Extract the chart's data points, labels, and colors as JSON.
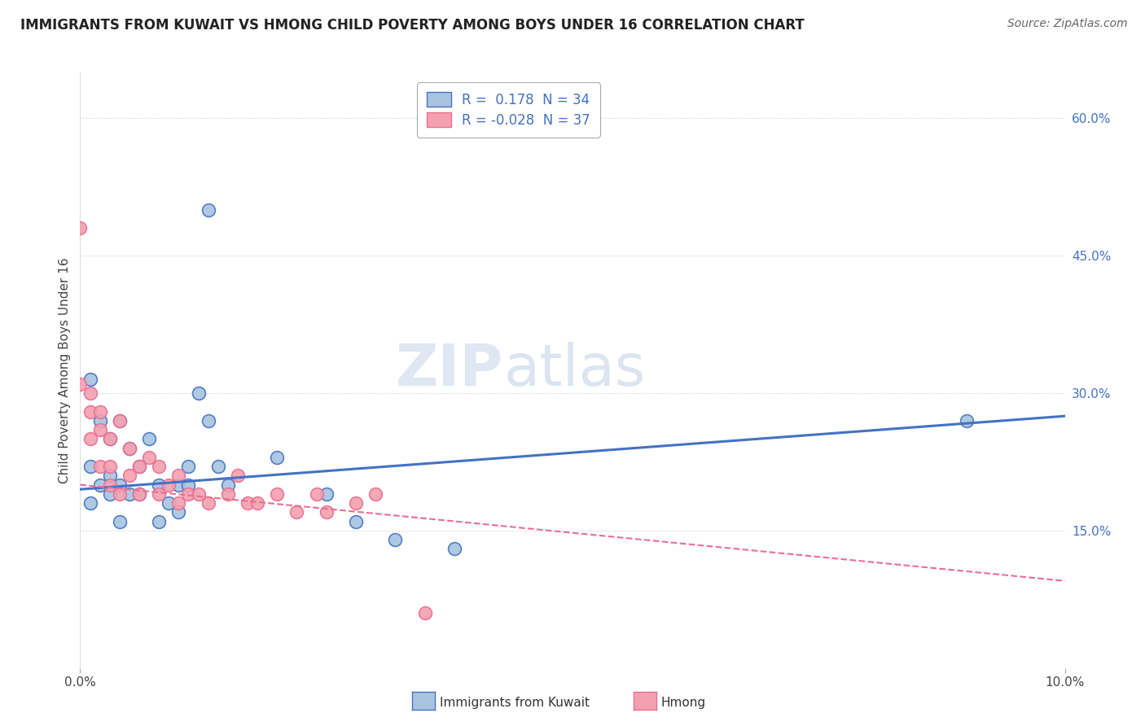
{
  "title": "IMMIGRANTS FROM KUWAIT VS HMONG CHILD POVERTY AMONG BOYS UNDER 16 CORRELATION CHART",
  "source": "Source: ZipAtlas.com",
  "ylabel": "Child Poverty Among Boys Under 16",
  "right_yticks": [
    "60.0%",
    "45.0%",
    "30.0%",
    "15.0%"
  ],
  "right_ytick_vals": [
    0.6,
    0.45,
    0.3,
    0.15
  ],
  "xlim": [
    0.0,
    0.1
  ],
  "ylim": [
    0.0,
    0.65
  ],
  "legend_r1": "R =  0.178  N = 34",
  "legend_r2": "R = -0.028  N = 37",
  "color_kuwait": "#a8c4e0",
  "color_hmong": "#f4a0b0",
  "line_color_kuwait": "#4472c4",
  "line_color_hmong": "#e87090",
  "watermark_zip": "ZIP",
  "watermark_atlas": "atlas",
  "kuwait_scatter_x": [
    0.001,
    0.013,
    0.001,
    0.002,
    0.002,
    0.003,
    0.003,
    0.004,
    0.004,
    0.005,
    0.005,
    0.006,
    0.007,
    0.008,
    0.009,
    0.01,
    0.011,
    0.012,
    0.013,
    0.014,
    0.015,
    0.02,
    0.025,
    0.028,
    0.032,
    0.038,
    0.001,
    0.003,
    0.004,
    0.006,
    0.008,
    0.01,
    0.011,
    0.09
  ],
  "kuwait_scatter_y": [
    0.315,
    0.5,
    0.22,
    0.2,
    0.27,
    0.21,
    0.25,
    0.2,
    0.27,
    0.24,
    0.19,
    0.22,
    0.25,
    0.2,
    0.18,
    0.2,
    0.22,
    0.3,
    0.27,
    0.22,
    0.2,
    0.23,
    0.19,
    0.16,
    0.14,
    0.13,
    0.18,
    0.19,
    0.16,
    0.19,
    0.16,
    0.17,
    0.2,
    0.27
  ],
  "hmong_scatter_x": [
    0.0,
    0.0,
    0.001,
    0.001,
    0.001,
    0.002,
    0.002,
    0.002,
    0.003,
    0.003,
    0.003,
    0.004,
    0.004,
    0.005,
    0.005,
    0.006,
    0.006,
    0.007,
    0.008,
    0.008,
    0.009,
    0.01,
    0.01,
    0.011,
    0.012,
    0.013,
    0.015,
    0.016,
    0.017,
    0.018,
    0.02,
    0.022,
    0.024,
    0.025,
    0.028,
    0.03,
    0.035
  ],
  "hmong_scatter_y": [
    0.48,
    0.31,
    0.25,
    0.28,
    0.3,
    0.22,
    0.26,
    0.28,
    0.2,
    0.22,
    0.25,
    0.19,
    0.27,
    0.21,
    0.24,
    0.22,
    0.19,
    0.23,
    0.22,
    0.19,
    0.2,
    0.21,
    0.18,
    0.19,
    0.19,
    0.18,
    0.19,
    0.21,
    0.18,
    0.18,
    0.19,
    0.17,
    0.19,
    0.17,
    0.18,
    0.19,
    0.06
  ]
}
